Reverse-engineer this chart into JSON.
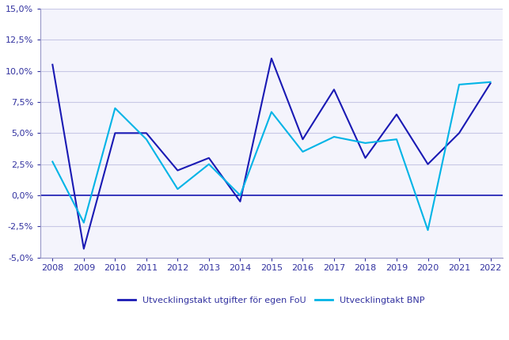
{
  "years": [
    2008,
    2009,
    2010,
    2011,
    2012,
    2013,
    2014,
    2015,
    2016,
    2017,
    2018,
    2019,
    2020,
    2021,
    2022
  ],
  "fou": [
    0.105,
    -0.043,
    0.05,
    0.05,
    0.02,
    0.03,
    -0.005,
    0.11,
    0.045,
    0.085,
    0.03,
    0.065,
    0.025,
    0.05,
    0.09
  ],
  "bnp": [
    0.027,
    -0.022,
    0.07,
    0.045,
    0.005,
    0.025,
    0.0,
    0.067,
    0.035,
    0.047,
    0.042,
    0.045,
    -0.028,
    0.089,
    0.091
  ],
  "fou_color": "#1a1ab4",
  "bnp_color": "#00b4e6",
  "fou_label": "Utvecklingstakt utgifter för egen FoU",
  "bnp_label": "Utvecklingtakt BNP",
  "ylim": [
    -0.05,
    0.15
  ],
  "yticks": [
    -0.05,
    -0.025,
    0.0,
    0.025,
    0.05,
    0.075,
    0.1,
    0.125,
    0.15
  ],
  "bg_color": "#ffffff",
  "plot_bg_color": "#f4f4fc",
  "grid_color": "#c8c8e6",
  "axis_color": "#3232a0",
  "tick_color": "#3232a0",
  "zero_line_color": "#1a1ab4",
  "spine_color": "#9898c8"
}
